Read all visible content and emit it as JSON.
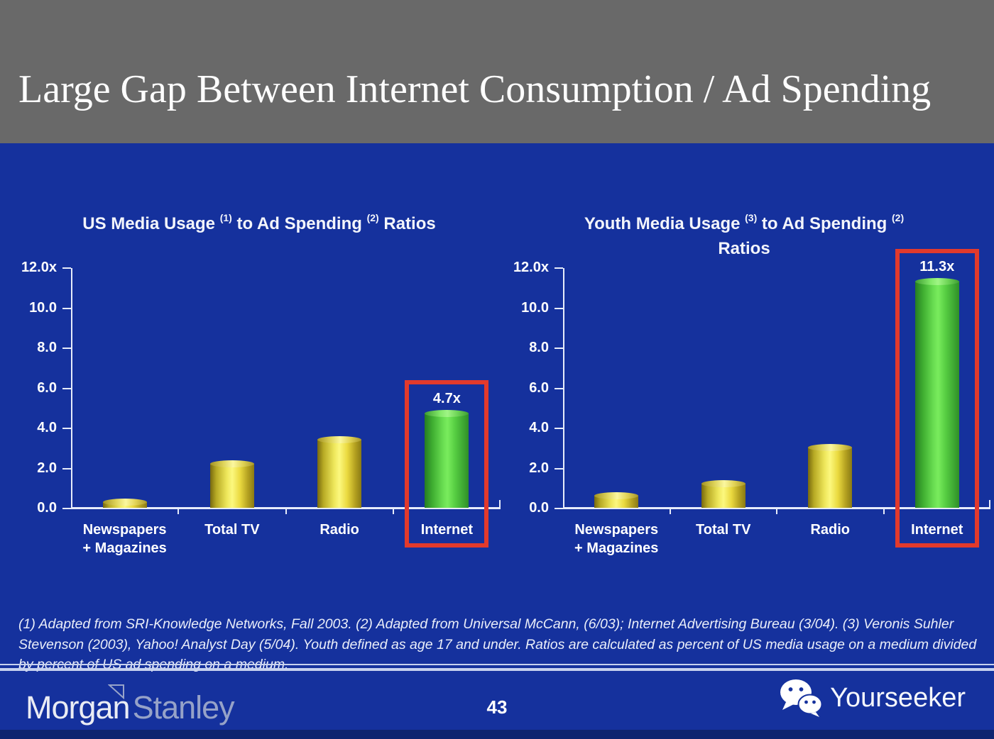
{
  "slide": {
    "title": "Large Gap Between Internet Consumption / Ad Spending"
  },
  "charts": [
    {
      "title_segments": [
        {
          "text": "US Media Usage "
        },
        {
          "sup": "(1)"
        },
        {
          "text": " to Ad Spending "
        },
        {
          "sup": "(2)"
        },
        {
          "text": " Ratios"
        }
      ]
    },
    {
      "title_segments": [
        {
          "text": "Youth Media Usage "
        },
        {
          "sup": "(3)"
        },
        {
          "text": " to Ad Spending "
        },
        {
          "sup": "(2)"
        }
      ],
      "title_line2": "Ratios"
    }
  ],
  "chart_data": [
    {
      "type": "bar",
      "title": "US Media Usage (1) to Ad Spending (2) Ratios",
      "categories": [
        "Newspapers + Magazines",
        "Total TV",
        "Radio",
        "Internet"
      ],
      "category_lines": [
        [
          "Newspapers",
          "+ Magazines"
        ],
        [
          "Total TV"
        ],
        [
          "Radio"
        ],
        [
          "Internet"
        ]
      ],
      "values": [
        0.3,
        2.2,
        3.4,
        4.7
      ],
      "bar_colors": [
        "yellow",
        "yellow",
        "yellow",
        "green"
      ],
      "highlight_index": 3,
      "data_label": "4.7x",
      "ylim": [
        0,
        12
      ],
      "yticks": [
        "12.0x",
        "10.0",
        "8.0",
        "6.0",
        "4.0",
        "2.0",
        "0.0"
      ],
      "grid": false,
      "legend": false
    },
    {
      "type": "bar",
      "title": "Youth Media Usage (3) to Ad Spending (2) Ratios",
      "categories": [
        "Newspapers + Magazines",
        "Total TV",
        "Radio",
        "Internet"
      ],
      "category_lines": [
        [
          "Newspapers",
          "+ Magazines"
        ],
        [
          "Total TV"
        ],
        [
          "Radio"
        ],
        [
          "Internet"
        ]
      ],
      "values": [
        0.6,
        1.2,
        3.0,
        11.3
      ],
      "bar_colors": [
        "yellow",
        "yellow",
        "yellow",
        "green"
      ],
      "highlight_index": 3,
      "data_label": "11.3x",
      "ylim": [
        0,
        12
      ],
      "yticks": [
        "12.0x",
        "10.0",
        "8.0",
        "6.0",
        "4.0",
        "2.0",
        "0.0"
      ],
      "grid": false,
      "legend": false
    }
  ],
  "footnote": "(1) Adapted from SRI-Knowledge Networks, Fall 2003.  (2) Adapted from Universal McCann, (6/03); Internet Advertising Bureau (3/04). (3) Veronis Suhler Stevenson (2003), Yahoo! Analyst Day (5/04).  Youth defined as age 17 and under.  Ratios are calculated as percent of US media usage on a medium divided by percent of US ad spending on a medium.",
  "footer": {
    "brand_word1": "Morgan",
    "brand_word2": "Stanley",
    "page_number": "43",
    "watermark_label": "Yourseeker",
    "icons": [
      "morgan-stanley-triangle-icon",
      "wechat-icon"
    ]
  },
  "colors": {
    "background_blue": "#15319D",
    "header_gray": "#696969",
    "bar_yellow": "#F2EC62",
    "bar_green": "#6ADE52",
    "highlight_red": "#E23A2C",
    "axis_white": "#E7ECFA",
    "bottom_strip": "#0E2470"
  }
}
